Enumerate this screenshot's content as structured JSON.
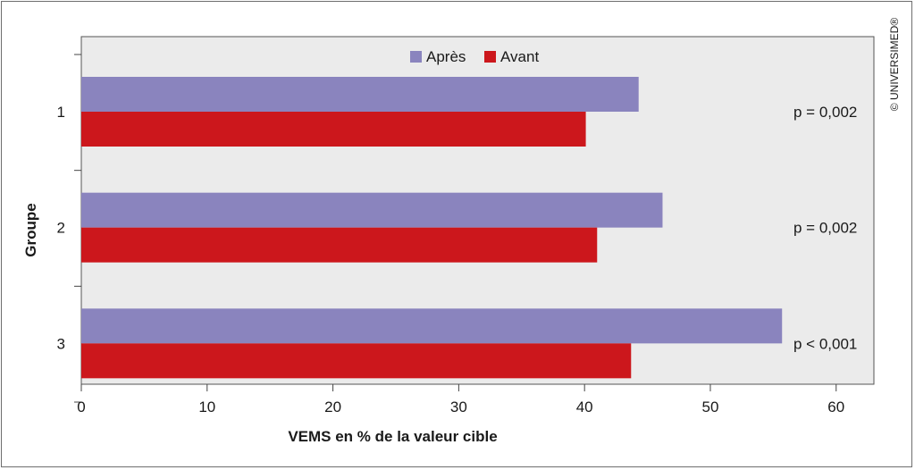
{
  "chart_data": {
    "type": "bar",
    "orientation": "horizontal",
    "categories": [
      "1",
      "2",
      "3"
    ],
    "series": [
      {
        "name": "Après",
        "values": [
          44.3,
          46.2,
          55.7
        ],
        "color": "#8a84be"
      },
      {
        "name": "Avant",
        "values": [
          40.1,
          41.0,
          43.7
        ],
        "color": "#cc171c"
      }
    ],
    "annotations": [
      "p = 0,002",
      "p = 0,002",
      "p < 0,001"
    ],
    "xlabel": "VEMS en % de la valeur cible",
    "ylabel": "Groupe",
    "xlim": [
      0,
      63
    ],
    "xticks": [
      0,
      10,
      20,
      30,
      40,
      50,
      60
    ],
    "legend_position": "top-center",
    "grid": false,
    "plot_background": "#ebebeb"
  },
  "copyright": "© UNIVERSIMED®"
}
